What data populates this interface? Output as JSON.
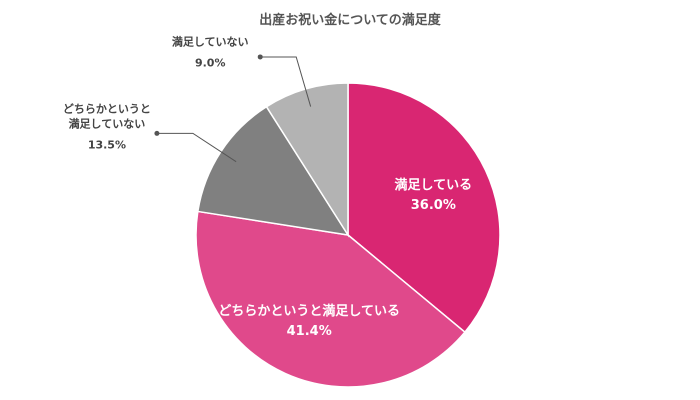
{
  "chart_data": {
    "type": "pie",
    "title": "出産お祝い金についての満足度",
    "start_angle": "12 o'clock",
    "direction": "clockwise",
    "slices": [
      {
        "label_lines": [
          "満足している"
        ],
        "value": 36.0,
        "value_text": "36.0%",
        "color": "#D92672",
        "label_placement": "inside"
      },
      {
        "label_lines": [
          "どちらかというと満足している"
        ],
        "value": 41.4,
        "value_text": "41.4%",
        "color": "#E0498B",
        "label_placement": "inside"
      },
      {
        "label_lines": [
          "どちらかというと",
          "満足していない"
        ],
        "value": 13.5,
        "value_text": "13.5%",
        "color": "#808080",
        "label_placement": "outside"
      },
      {
        "label_lines": [
          "満足していない"
        ],
        "value": 9.0,
        "value_text": "9.0%",
        "color": "#B3B3B3",
        "label_placement": "outside"
      }
    ]
  }
}
